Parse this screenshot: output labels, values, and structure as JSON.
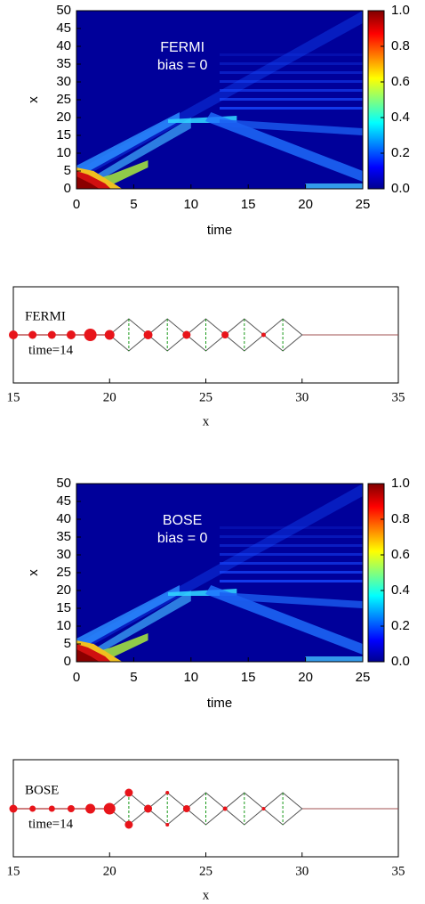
{
  "chart_data": [
    {
      "type": "heatmap",
      "xlabel": "time",
      "ylabel": "x",
      "annotations": [
        "FERMI",
        "bias = 0"
      ],
      "xlim": [
        0,
        25
      ],
      "xticks": [
        0,
        5,
        10,
        15,
        20,
        25
      ],
      "ylim": [
        0,
        50
      ],
      "yticks": [
        0,
        5,
        10,
        15,
        20,
        25,
        30,
        35,
        40,
        45,
        50
      ],
      "colorbar": {
        "lim": [
          0,
          1
        ],
        "ticks": [
          {
            "value": 0,
            "label": "0.0"
          },
          {
            "value": 0.2,
            "label": "0.2"
          },
          {
            "value": 0.4,
            "label": "0.4"
          },
          {
            "value": 0.6,
            "label": "0.6"
          },
          {
            "value": 0.8,
            "label": "0.8"
          },
          {
            "value": 1,
            "label": "1.0"
          }
        ]
      }
    },
    {
      "type": "lattice",
      "xlabel": "x",
      "annotations": [
        "FERMI",
        "time=14"
      ],
      "xlim": [
        15,
        35
      ],
      "xticks": [
        15,
        20,
        25,
        30,
        35
      ],
      "rungs": [
        21,
        23,
        25,
        27,
        29
      ],
      "x": [
        15,
        16,
        17,
        18,
        19,
        20,
        22,
        24,
        26,
        28
      ],
      "y": [
        0,
        0,
        0,
        0,
        0,
        0,
        0,
        0,
        0,
        0
      ],
      "sizes": [
        5,
        4.5,
        4.5,
        5,
        7,
        5.5,
        5,
        4.5,
        4,
        2.5
      ],
      "color": "#e8141a"
    },
    {
      "type": "heatmap",
      "xlabel": "time",
      "ylabel": "x",
      "annotations": [
        "BOSE",
        "bias = 0"
      ],
      "xlim": [
        0,
        25
      ],
      "xticks": [
        0,
        5,
        10,
        15,
        20,
        25
      ],
      "ylim": [
        0,
        50
      ],
      "yticks": [
        0,
        5,
        10,
        15,
        20,
        25,
        30,
        35,
        40,
        45,
        50
      ],
      "colorbar": {
        "lim": [
          0,
          1
        ],
        "ticks": [
          {
            "value": 0,
            "label": "0.0"
          },
          {
            "value": 0.2,
            "label": "0.2"
          },
          {
            "value": 0.4,
            "label": "0.4"
          },
          {
            "value": 0.6,
            "label": "0.6"
          },
          {
            "value": 0.8,
            "label": "0.8"
          },
          {
            "value": 1,
            "label": "1.0"
          }
        ]
      }
    },
    {
      "type": "lattice",
      "xlabel": "x",
      "annotations": [
        "BOSE",
        "time=14"
      ],
      "xlim": [
        15,
        35
      ],
      "xticks": [
        15,
        20,
        25,
        30,
        35
      ],
      "rungs": [
        21,
        23,
        25,
        27,
        29
      ],
      "x": [
        15,
        16,
        17,
        18,
        19,
        20,
        21,
        21,
        22,
        23,
        23,
        24,
        26,
        28
      ],
      "y": [
        0,
        0,
        0,
        0,
        0,
        0,
        1,
        -1,
        0,
        1,
        -1,
        0,
        0,
        0
      ],
      "sizes": [
        4.5,
        3.5,
        3.5,
        4,
        5.5,
        6.5,
        4.5,
        4.5,
        4.5,
        2,
        2,
        4,
        2.5,
        2
      ],
      "color": "#e8141a"
    }
  ]
}
